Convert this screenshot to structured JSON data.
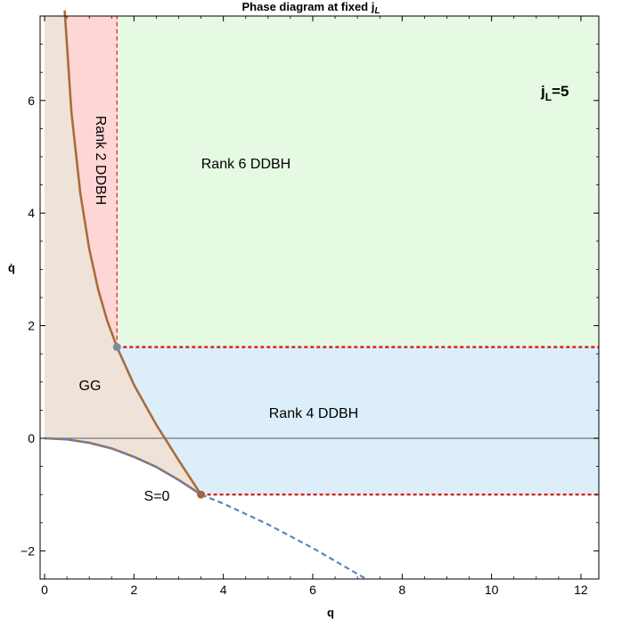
{
  "chart_data": {
    "type": "line",
    "title": "Phase diagram at fixed j",
    "title_sub": "L",
    "xlabel": "q",
    "ylabel": "q̇",
    "xlim": [
      -0.1,
      12.4
    ],
    "ylim": [
      -2.5,
      7.5
    ],
    "x_ticks": [
      0,
      2,
      4,
      6,
      8,
      10,
      12
    ],
    "y_ticks": [
      -2,
      0,
      2,
      4,
      6
    ],
    "x_tick_labels": [
      "0",
      "2",
      "4",
      "6",
      "8",
      "10",
      "12"
    ],
    "y_tick_labels": [
      "−2",
      "0",
      "2",
      "4",
      "6"
    ],
    "grid": false,
    "parameter_label": {
      "main": "j",
      "sub": "L",
      "rest": "=5"
    },
    "regions": [
      {
        "label": "Rank 6 DDBH",
        "color": "#e6fae3"
      },
      {
        "label": "Rank 2 DDBH",
        "color": "#ffd6d6"
      },
      {
        "label": "Rank 4 DDBH",
        "color": "#ddeefb"
      },
      {
        "label": "GG",
        "color": "#efe2d9"
      },
      {
        "label": "S=0",
        "color": "#ffffff"
      }
    ],
    "points": [
      {
        "x": 1.62,
        "y": 1.62,
        "color": "#7f8c9c"
      },
      {
        "x": 3.5,
        "y": -1.0,
        "color": "#a0683a"
      }
    ],
    "series": [
      {
        "style": "solid",
        "color": "#a86d3b",
        "x": [
          0.45,
          0.6,
          0.8,
          1.0,
          1.2,
          1.4,
          1.62,
          2.0,
          2.5,
          3.0,
          3.5
        ],
        "y": [
          7.6,
          5.8,
          4.35,
          3.36,
          2.64,
          2.09,
          1.62,
          0.95,
          0.24,
          -0.39,
          -1.0
        ]
      },
      {
        "style": "solid",
        "color": "#a86d3b",
        "x": [
          0,
          0.5,
          1.0,
          1.5,
          2.0,
          2.5,
          3.0,
          3.5
        ],
        "y": [
          0,
          -0.02,
          -0.08,
          -0.18,
          -0.33,
          -0.51,
          -0.74,
          -1.0
        ]
      },
      {
        "style": "dashed",
        "color": "#5b84c4",
        "x": [
          0,
          0.5,
          1.0,
          1.5,
          2.0,
          2.5,
          3.0,
          3.5,
          4.0,
          5.0,
          6.0,
          7.0,
          7.2
        ],
        "y": [
          0,
          -0.02,
          -0.08,
          -0.18,
          -0.33,
          -0.51,
          -0.74,
          -1.0,
          -1.16,
          -1.53,
          -1.95,
          -2.41,
          -2.5
        ]
      },
      {
        "style": "dashed",
        "color": "#d9231e",
        "x": [
          1.62,
          12.4
        ],
        "y": [
          1.62,
          1.62
        ]
      },
      {
        "style": "dashed",
        "color": "#d9231e",
        "x": [
          3.5,
          12.4
        ],
        "y": [
          -1.0,
          -1.0
        ]
      },
      {
        "style": "dashed-thin",
        "color": "#d9231e",
        "x": [
          1.62,
          1.62
        ],
        "y": [
          1.62,
          7.5
        ]
      }
    ]
  }
}
